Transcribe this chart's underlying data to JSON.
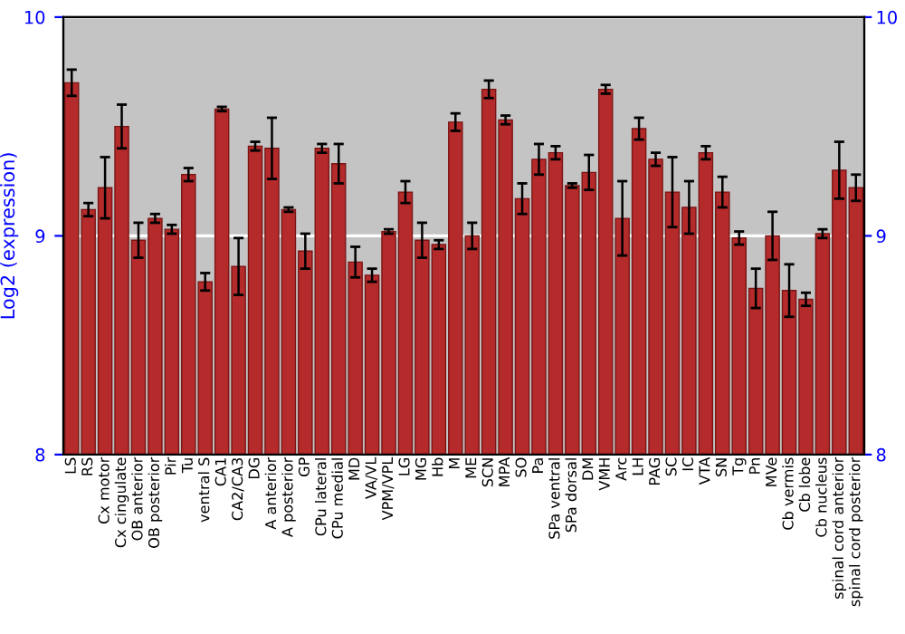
{
  "chart_data": {
    "type": "bar",
    "ylabel": "Log2 (expression)",
    "categories": [
      "LS",
      "RS",
      "Cx motor",
      "Cx cingulate",
      "OB anterior",
      "OB posterior",
      "Pir",
      "Tu",
      "ventral S",
      "CA1",
      "CA2/CA3",
      "DG",
      "A anterior",
      "A posterior",
      "GP",
      "CPu lateral",
      "CPu medial",
      "MD",
      "VA/VL",
      "VPM/VPL",
      "LG",
      "MG",
      "Hb",
      "M",
      "ME",
      "SCN",
      "MPA",
      "SO",
      "Pa",
      "SPa ventral",
      "SPa dorsal",
      "DM",
      "VMH",
      "Arc",
      "LH",
      "PAG",
      "SC",
      "IC",
      "VTA",
      "SN",
      "Tg",
      "Pn",
      "MVe",
      "Cb vermis",
      "Cb lobe",
      "Cb nucleus",
      "spinal cord anterior",
      "spinal cord posterior"
    ],
    "values": [
      9.7,
      9.12,
      9.22,
      9.5,
      8.98,
      9.08,
      9.03,
      9.28,
      8.79,
      9.58,
      8.86,
      9.41,
      9.4,
      9.12,
      8.93,
      9.4,
      9.33,
      8.88,
      8.82,
      9.02,
      9.2,
      8.98,
      8.96,
      9.52,
      9.0,
      9.67,
      9.53,
      9.17,
      9.35,
      9.38,
      9.23,
      9.29,
      9.67,
      9.08,
      9.49,
      9.35,
      9.2,
      9.13,
      9.38,
      9.2,
      8.99,
      8.76,
      9.0,
      8.75,
      8.71,
      9.01,
      9.3,
      9.22
    ],
    "errors": [
      0.06,
      0.03,
      0.14,
      0.1,
      0.08,
      0.02,
      0.02,
      0.03,
      0.04,
      0.01,
      0.13,
      0.02,
      0.14,
      0.01,
      0.08,
      0.02,
      0.09,
      0.07,
      0.03,
      0.01,
      0.05,
      0.08,
      0.02,
      0.04,
      0.06,
      0.04,
      0.02,
      0.07,
      0.07,
      0.03,
      0.01,
      0.08,
      0.02,
      0.17,
      0.05,
      0.03,
      0.16,
      0.12,
      0.03,
      0.07,
      0.03,
      0.09,
      0.11,
      0.12,
      0.03,
      0.02,
      0.13,
      0.06
    ],
    "color": "#b52a2a",
    "ylim": [
      8,
      10
    ],
    "yticks": [
      8,
      9,
      10
    ],
    "y2lim": [
      8,
      10
    ],
    "y2ticks": [
      8,
      9,
      10
    ],
    "grid": "y"
  }
}
